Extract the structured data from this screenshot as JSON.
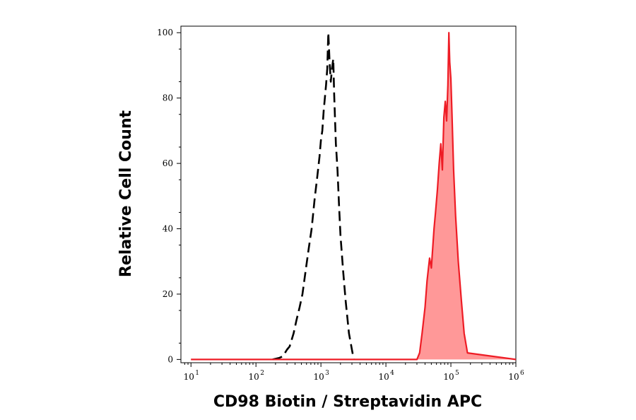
{
  "chart_data": {
    "type": "area",
    "xlabel": "CD98 Biotin / Streptavidin APC",
    "ylabel": "Relative Cell Count",
    "x_scale": "log",
    "xlim": [
      7,
      1000000
    ],
    "ylim": [
      -1,
      102
    ],
    "x_ticks": [
      {
        "base": "10",
        "exp": "1",
        "value": 10
      },
      {
        "base": "10",
        "exp": "2",
        "value": 100
      },
      {
        "base": "10",
        "exp": "3",
        "value": 1000
      },
      {
        "base": "10",
        "exp": "4",
        "value": 10000
      },
      {
        "base": "10",
        "exp": "5",
        "value": 100000
      },
      {
        "base": "10",
        "exp": "6",
        "value": 1000000
      }
    ],
    "y_ticks": [
      "0",
      "20",
      "40",
      "60",
      "80",
      "100"
    ],
    "series": [
      {
        "style": "dashed",
        "color": "#000000",
        "fill": "none",
        "x": [
          180,
          230,
          260,
          300,
          330,
          380,
          420,
          470,
          520,
          580,
          650,
          720,
          800,
          880,
          950,
          1000,
          1050,
          1100,
          1150,
          1200,
          1250,
          1300,
          1360,
          1420,
          1480,
          1550,
          1600,
          1700,
          1800,
          1900,
          2000,
          2200,
          2400,
          2700,
          3000,
          3200
        ],
        "y": [
          0,
          0.5,
          1,
          3,
          4,
          8,
          12,
          16,
          20,
          27,
          34,
          40,
          49,
          56,
          62,
          67,
          70,
          76,
          80,
          84,
          89,
          100,
          91,
          85,
          89,
          92,
          81,
          66,
          58,
          47,
          38,
          27,
          18,
          8,
          3,
          0
        ]
      },
      {
        "style": "solid",
        "color": "#ee1c25",
        "fill": "#ff9898",
        "x": [
          10,
          30000,
          33000,
          36000,
          40000,
          43000,
          47000,
          50000,
          55000,
          58000,
          62000,
          66000,
          70000,
          74000,
          78000,
          82000,
          86000,
          90000,
          93000,
          96000,
          100000,
          104000,
          110000,
          118000,
          130000,
          145000,
          160000,
          180000,
          1000000
        ],
        "y": [
          0,
          0,
          2,
          8,
          16,
          24,
          31,
          28,
          40,
          45,
          52,
          60,
          66,
          58,
          74,
          79,
          73,
          84,
          100,
          91,
          86,
          75,
          58,
          44,
          30,
          18,
          8,
          2,
          0
        ]
      }
    ]
  }
}
